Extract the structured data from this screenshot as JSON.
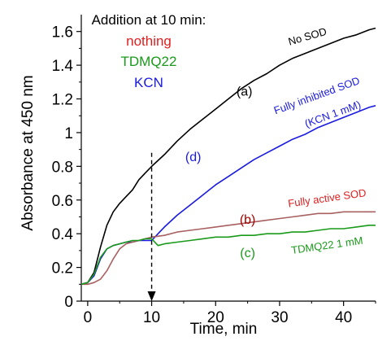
{
  "chart_data": {
    "type": "line",
    "xlabel": "Time, min",
    "ylabel": "Absorbance at 450 nm",
    "xlim": [
      -1,
      45
    ],
    "ylim": [
      0,
      1.7
    ],
    "xticks": [
      0,
      10,
      20,
      30,
      40
    ],
    "yticks": [
      0,
      0.2,
      0.4,
      0.6,
      0.8,
      1,
      1.2,
      1.4,
      1.6
    ],
    "ytick_labels": [
      "0",
      "0.2",
      "0.4",
      "0.6",
      "0.8",
      "1",
      "1.2",
      "1.4",
      "1.6"
    ],
    "grid": false,
    "legend": {
      "title": "Addition at 10 min:",
      "items": [
        {
          "label": "nothing",
          "color": "#e02020"
        },
        {
          "label": "TDMQ22",
          "color": "#1a9a1a"
        },
        {
          "label": "KCN",
          "color": "#1a1ae0"
        }
      ]
    },
    "series": [
      {
        "color": "#000000",
        "x": [
          -1,
          0,
          1,
          2,
          3,
          4,
          5,
          6,
          7,
          8,
          9,
          10,
          12,
          14,
          16,
          18,
          20,
          22,
          24,
          26,
          28,
          30,
          32,
          34,
          36,
          38,
          40,
          42,
          44,
          45
        ],
        "y": [
          0.1,
          0.11,
          0.17,
          0.32,
          0.45,
          0.53,
          0.58,
          0.62,
          0.66,
          0.72,
          0.76,
          0.8,
          0.87,
          0.95,
          1.02,
          1.08,
          1.14,
          1.2,
          1.26,
          1.31,
          1.35,
          1.4,
          1.44,
          1.47,
          1.5,
          1.53,
          1.56,
          1.58,
          1.61,
          1.62
        ]
      },
      {
        "color": "#1a1ae0",
        "x": [
          -1,
          0,
          1,
          2,
          3,
          4,
          5,
          6,
          7,
          8,
          9,
          10,
          11,
          12,
          14,
          16,
          18,
          20,
          22,
          24,
          26,
          28,
          30,
          32,
          34,
          36,
          38,
          40,
          42,
          44,
          45
        ],
        "y": [
          0.1,
          0.11,
          0.15,
          0.25,
          0.31,
          0.33,
          0.34,
          0.35,
          0.35,
          0.36,
          0.36,
          0.36,
          0.4,
          0.44,
          0.51,
          0.57,
          0.63,
          0.69,
          0.74,
          0.79,
          0.84,
          0.88,
          0.92,
          0.96,
          0.99,
          1.03,
          1.06,
          1.09,
          1.12,
          1.15,
          1.16
        ]
      },
      {
        "color": "#a86060",
        "x": [
          -1,
          0,
          1,
          2,
          3,
          4,
          5,
          6,
          7,
          8,
          9,
          10,
          12,
          14,
          16,
          18,
          20,
          22,
          24,
          26,
          28,
          30,
          32,
          34,
          36,
          38,
          40,
          42,
          44,
          45
        ],
        "y": [
          0.1,
          0.1,
          0.11,
          0.13,
          0.18,
          0.25,
          0.31,
          0.34,
          0.35,
          0.36,
          0.37,
          0.38,
          0.39,
          0.41,
          0.42,
          0.43,
          0.44,
          0.45,
          0.46,
          0.47,
          0.48,
          0.49,
          0.5,
          0.51,
          0.52,
          0.52,
          0.53,
          0.53,
          0.53,
          0.53
        ]
      },
      {
        "color": "#1a9a1a",
        "x": [
          -1,
          0,
          1,
          2,
          3,
          4,
          5,
          6,
          7,
          8,
          9,
          10,
          11,
          12,
          14,
          16,
          18,
          20,
          22,
          24,
          26,
          28,
          30,
          32,
          34,
          36,
          38,
          40,
          42,
          44,
          45
        ],
        "y": [
          0.1,
          0.11,
          0.16,
          0.26,
          0.31,
          0.33,
          0.34,
          0.35,
          0.36,
          0.36,
          0.37,
          0.37,
          0.33,
          0.34,
          0.35,
          0.36,
          0.37,
          0.38,
          0.38,
          0.39,
          0.39,
          0.4,
          0.4,
          0.41,
          0.41,
          0.42,
          0.43,
          0.43,
          0.44,
          0.45,
          0.45
        ]
      }
    ],
    "annotations": [
      {
        "text": "No SOD",
        "x": 34.5,
        "y": 1.55,
        "rotate": -16,
        "color": "#000000"
      },
      {
        "text": "(a)",
        "x": 24.5,
        "y": 1.22,
        "rotate": 0,
        "color": "#000000"
      },
      {
        "text": "Fully inhibited SOD",
        "x": 36,
        "y": 1.2,
        "rotate": -20,
        "color": "#1a1ae0"
      },
      {
        "text": "(KCN 1 mM)",
        "x": 38.5,
        "y": 1.09,
        "rotate": -20,
        "color": "#1a1ae0"
      },
      {
        "text": "(d)",
        "x": 16.5,
        "y": 0.83,
        "rotate": 0,
        "color": "#1a1ae0"
      },
      {
        "text": "Fully active SOD",
        "x": 37.5,
        "y": 0.59,
        "rotate": -8,
        "color": "#e02020"
      },
      {
        "text": "(b)",
        "x": 25,
        "y": 0.46,
        "rotate": 0,
        "color": "#a80000"
      },
      {
        "text": "(c)",
        "x": 25,
        "y": 0.26,
        "rotate": 0,
        "color": "#1a9a1a"
      },
      {
        "text": "TDMQ22 1 mM",
        "x": 37.5,
        "y": 0.31,
        "rotate": -8,
        "color": "#1a9a1a"
      }
    ],
    "marker": {
      "x": 10,
      "y_from": 0.88,
      "y_to": 0.0,
      "style": "dashed-arrow"
    }
  }
}
